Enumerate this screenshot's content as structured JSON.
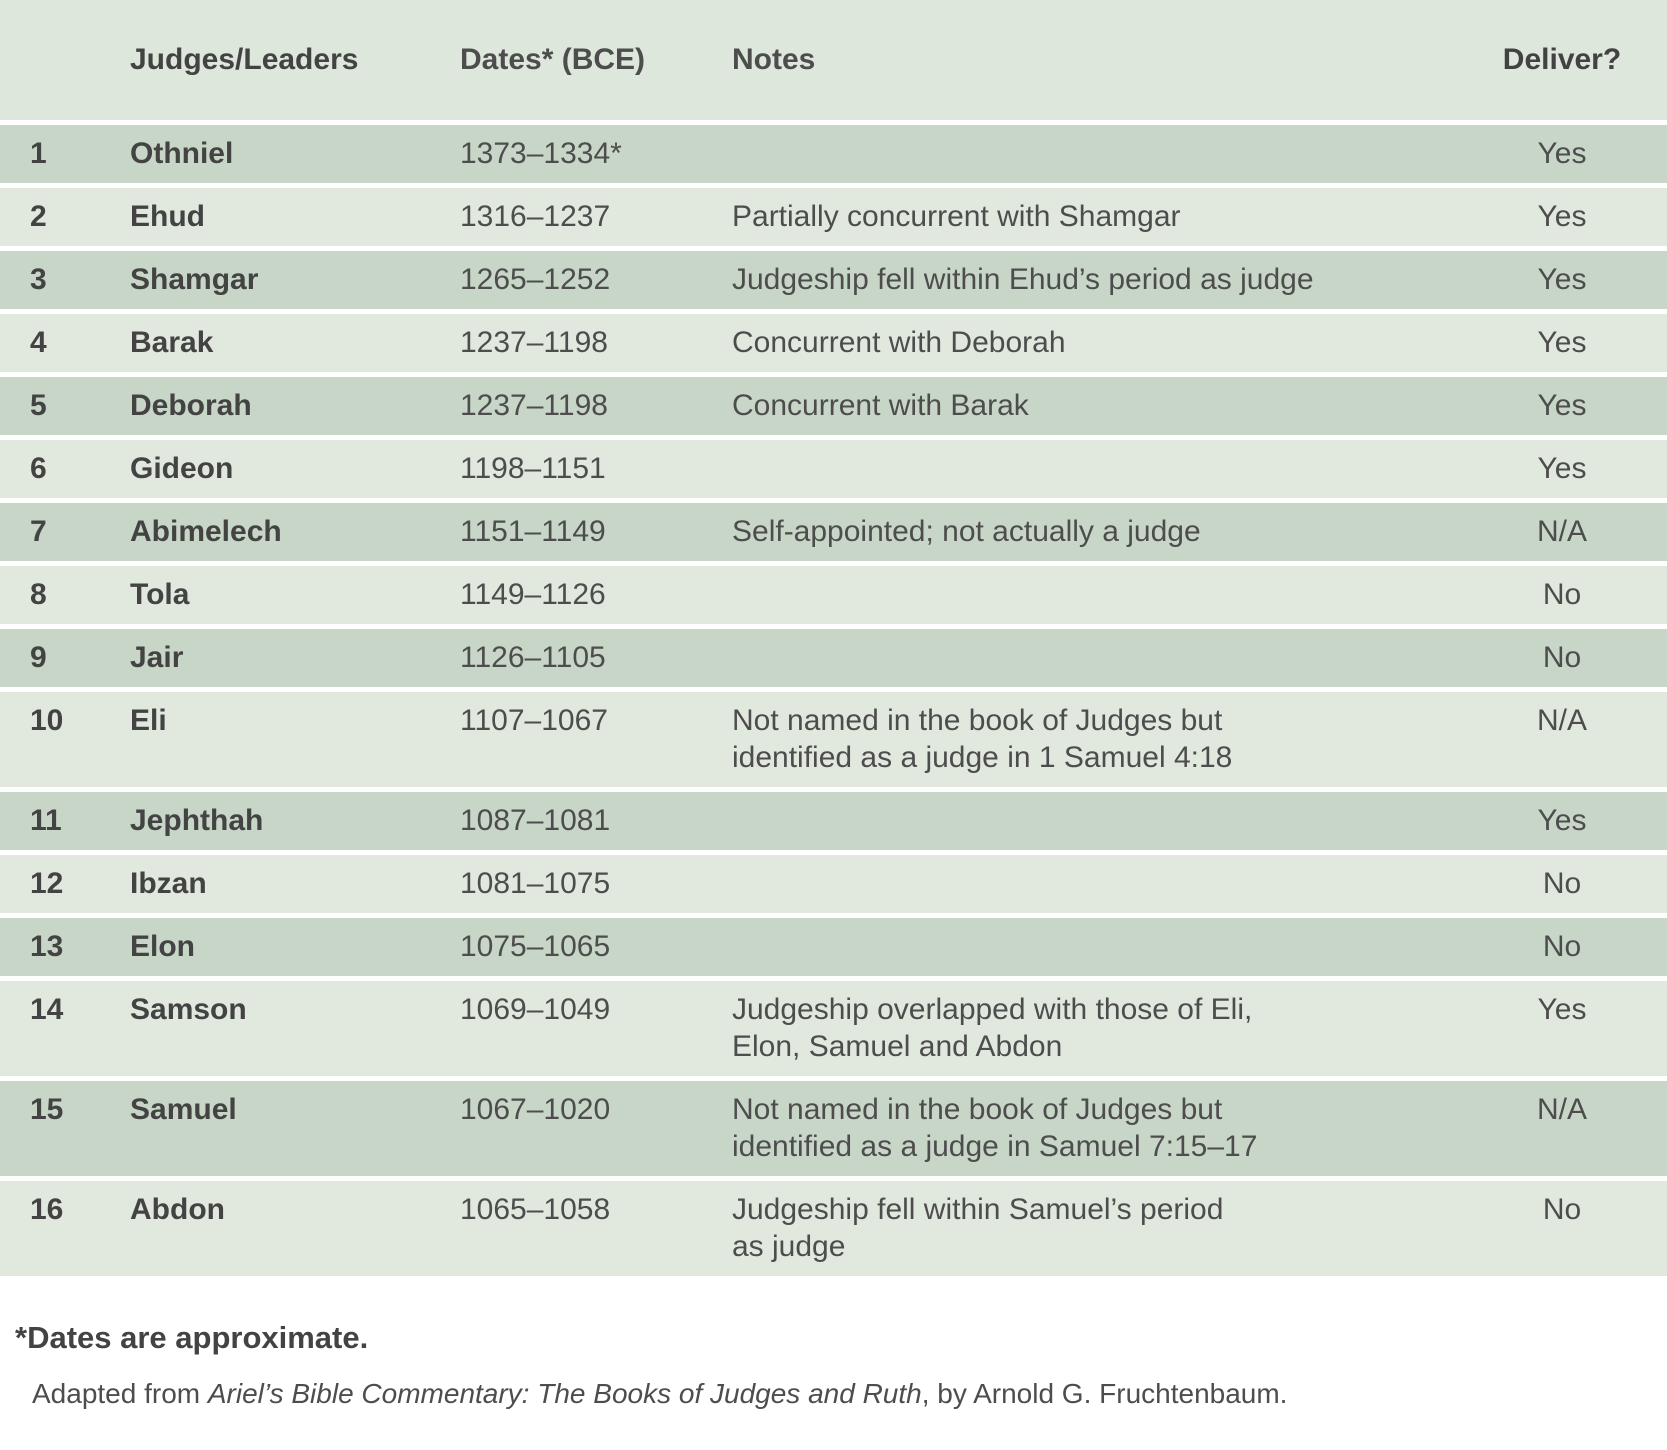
{
  "table": {
    "columns": {
      "num": "",
      "name": "Judges/Leaders",
      "dates": "Dates* (BCE)",
      "notes": "Notes",
      "deliver": "Deliver?"
    },
    "rows": [
      {
        "num": "1",
        "name": "Othniel",
        "dates": "1373–1334*",
        "notes": "",
        "deliver": "Yes"
      },
      {
        "num": "2",
        "name": "Ehud",
        "dates": "1316–1237",
        "notes": "Partially concurrent with Shamgar",
        "deliver": "Yes"
      },
      {
        "num": "3",
        "name": "Shamgar",
        "dates": "1265–1252",
        "notes": "Judgeship fell within Ehud’s period as judge",
        "deliver": "Yes"
      },
      {
        "num": "4",
        "name": "Barak",
        "dates": "1237–1198",
        "notes": "Concurrent with Deborah",
        "deliver": "Yes"
      },
      {
        "num": "5",
        "name": "Deborah",
        "dates": "1237–1198",
        "notes": "Concurrent with Barak",
        "deliver": "Yes"
      },
      {
        "num": "6",
        "name": "Gideon",
        "dates": "1198–1151",
        "notes": "",
        "deliver": "Yes"
      },
      {
        "num": "7",
        "name": "Abimelech",
        "dates": "1151–1149",
        "notes": "Self-appointed; not actually a judge",
        "deliver": "N/A"
      },
      {
        "num": "8",
        "name": "Tola",
        "dates": "1149–1126",
        "notes": "",
        "deliver": "No"
      },
      {
        "num": "9",
        "name": "Jair",
        "dates": "1126–1105",
        "notes": "",
        "deliver": "No"
      },
      {
        "num": "10",
        "name": "Eli",
        "dates": "1107–1067",
        "notes": "Not named in the book of Judges but\nidentified as a judge in 1 Samuel 4:18",
        "deliver": "N/A"
      },
      {
        "num": "11",
        "name": "Jephthah",
        "dates": "1087–1081",
        "notes": "",
        "deliver": "Yes"
      },
      {
        "num": "12",
        "name": "Ibzan",
        "dates": "1081–1075",
        "notes": "",
        "deliver": "No"
      },
      {
        "num": "13",
        "name": "Elon",
        "dates": "1075–1065",
        "notes": "",
        "deliver": "No"
      },
      {
        "num": "14",
        "name": "Samson",
        "dates": "1069–1049",
        "notes": "Judgeship overlapped with those of Eli,\nElon, Samuel and Abdon",
        "deliver": "Yes"
      },
      {
        "num": "15",
        "name": "Samuel",
        "dates": "1067–1020",
        "notes": "Not named in the book of Judges but\nidentified as a judge in Samuel 7:15–17",
        "deliver": "N/A"
      },
      {
        "num": "16",
        "name": "Abdon",
        "dates": "1065–1058",
        "notes": "Judgeship fell within Samuel’s period\nas judge",
        "deliver": "No"
      }
    ]
  },
  "footer": {
    "footnote": "*Dates are approximate.",
    "source_prefix": "Adapted from ",
    "source_title": "Ariel’s Bible Commentary: The Books of Judges and Ruth",
    "source_suffix": ", by Arnold G. Fruchtenbaum."
  },
  "colors": {
    "header_bg": "#dde7db",
    "row_dark": "#c8d6c8",
    "row_light": "#e1e9df",
    "text": "#4d4d4d",
    "text_bold": "#424242"
  }
}
